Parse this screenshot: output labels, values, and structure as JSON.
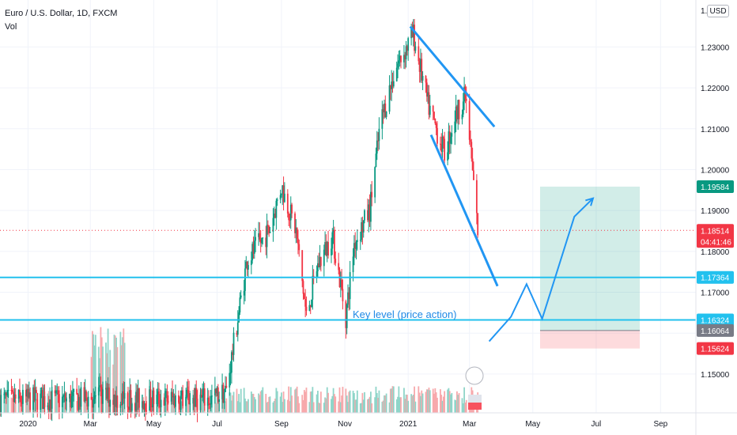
{
  "header": {
    "symbol_line": "Euro / U.S. Dollar, 1D, FXCM",
    "indicator": "Vol",
    "currency": "USD",
    "top_partial_label": "1."
  },
  "chart_data": {
    "type": "candlestick",
    "title": "Euro / U.S. Dollar, 1D, FXCM",
    "ylim": [
      1.1405,
      1.2415
    ],
    "y_ticks": [
      1.15,
      1.16,
      1.17,
      1.18,
      1.19,
      1.2,
      1.21,
      1.22,
      1.23
    ],
    "y_tick_labels": [
      "1.15000",
      "1.16000",
      "1.17000",
      "1.18000",
      "1.19000",
      "1.20000",
      "1.21000",
      "1.22000",
      "1.23000"
    ],
    "x_tick_labels": [
      "2020",
      "Mar",
      "May",
      "Jul",
      "Sep",
      "Nov",
      "2021",
      "Mar",
      "May",
      "Jul",
      "Sep"
    ],
    "x_tick_dates": [
      "2020-01-01",
      "2020-03-01",
      "2020-05-01",
      "2020-07-01",
      "2020-09-01",
      "2020-11-01",
      "2021-01-01",
      "2021-03-01",
      "2021-05-01",
      "2021-07-01",
      "2021-09-01"
    ],
    "xlim": [
      "2019-12-05",
      "2021-10-05"
    ],
    "grid": true,
    "price_path": [
      [
        "2019-12-05",
        1.1435
      ],
      [
        "2020-01-10",
        1.1438
      ],
      [
        "2020-02-15",
        1.1436
      ],
      [
        "2020-03-10",
        1.1445
      ],
      [
        "2020-04-15",
        1.1437
      ],
      [
        "2020-05-20",
        1.144
      ],
      [
        "2020-06-25",
        1.1438
      ],
      [
        "2020-07-10",
        1.146
      ],
      [
        "2020-07-20",
        1.162
      ],
      [
        "2020-07-30",
        1.178
      ],
      [
        "2020-08-20",
        1.185
      ],
      [
        "2020-09-01",
        1.196
      ],
      [
        "2020-09-15",
        1.185
      ],
      [
        "2020-09-25",
        1.164
      ],
      [
        "2020-10-05",
        1.176
      ],
      [
        "2020-10-20",
        1.184
      ],
      [
        "2020-11-02",
        1.164
      ],
      [
        "2020-11-10",
        1.182
      ],
      [
        "2020-11-25",
        1.19
      ],
      [
        "2020-12-05",
        1.211
      ],
      [
        "2020-12-20",
        1.225
      ],
      [
        "2021-01-06",
        1.233
      ],
      [
        "2021-01-20",
        1.216
      ],
      [
        "2021-02-05",
        1.204
      ],
      [
        "2021-02-15",
        1.213
      ],
      [
        "2021-02-25",
        1.218
      ],
      [
        "2021-03-02",
        1.205
      ],
      [
        "2021-03-09",
        1.185
      ]
    ],
    "price_lines": [
      {
        "label": "1.19584",
        "value": 1.19584,
        "color": "#089981"
      },
      {
        "label": "1.18514",
        "value": 1.18514,
        "color": "#f23645"
      },
      {
        "label": "1.17364",
        "value": 1.17364,
        "color": "#22c1ee"
      },
      {
        "label": "1.16324",
        "value": 1.16324,
        "color": "#22c1ee"
      },
      {
        "label": "1.16064",
        "value": 1.16064,
        "color": "#787b86"
      },
      {
        "label": "1.15624",
        "value": 1.15624,
        "color": "#f23645"
      }
    ],
    "countdown": "04:41:46",
    "horizontal_levels": [
      1.17364,
      1.16324
    ],
    "annotation": "Key level (price action)",
    "channel_lines": [
      {
        "from": [
          "2021-01-03",
          1.235
        ],
        "to": [
          "2021-03-25",
          1.2105
        ]
      },
      {
        "from": [
          "2021-01-23",
          1.2085
        ],
        "to": [
          "2021-03-28",
          1.1715
        ]
      }
    ],
    "projection_path": [
      [
        "2021-03-20",
        1.158
      ],
      [
        "2021-04-10",
        1.164
      ],
      [
        "2021-04-25",
        1.172
      ],
      [
        "2021-05-10",
        1.1635
      ],
      [
        "2021-06-10",
        1.1885
      ],
      [
        "2021-06-28",
        1.193
      ]
    ],
    "long_position": {
      "start": "2021-05-08",
      "end": "2021-08-12",
      "entry": 1.16064,
      "target": 1.19584,
      "stop": 1.15624
    },
    "colors": {
      "up": "#089981",
      "down": "#f23645",
      "line": "#2196f3",
      "level": "#22c1ee"
    }
  }
}
